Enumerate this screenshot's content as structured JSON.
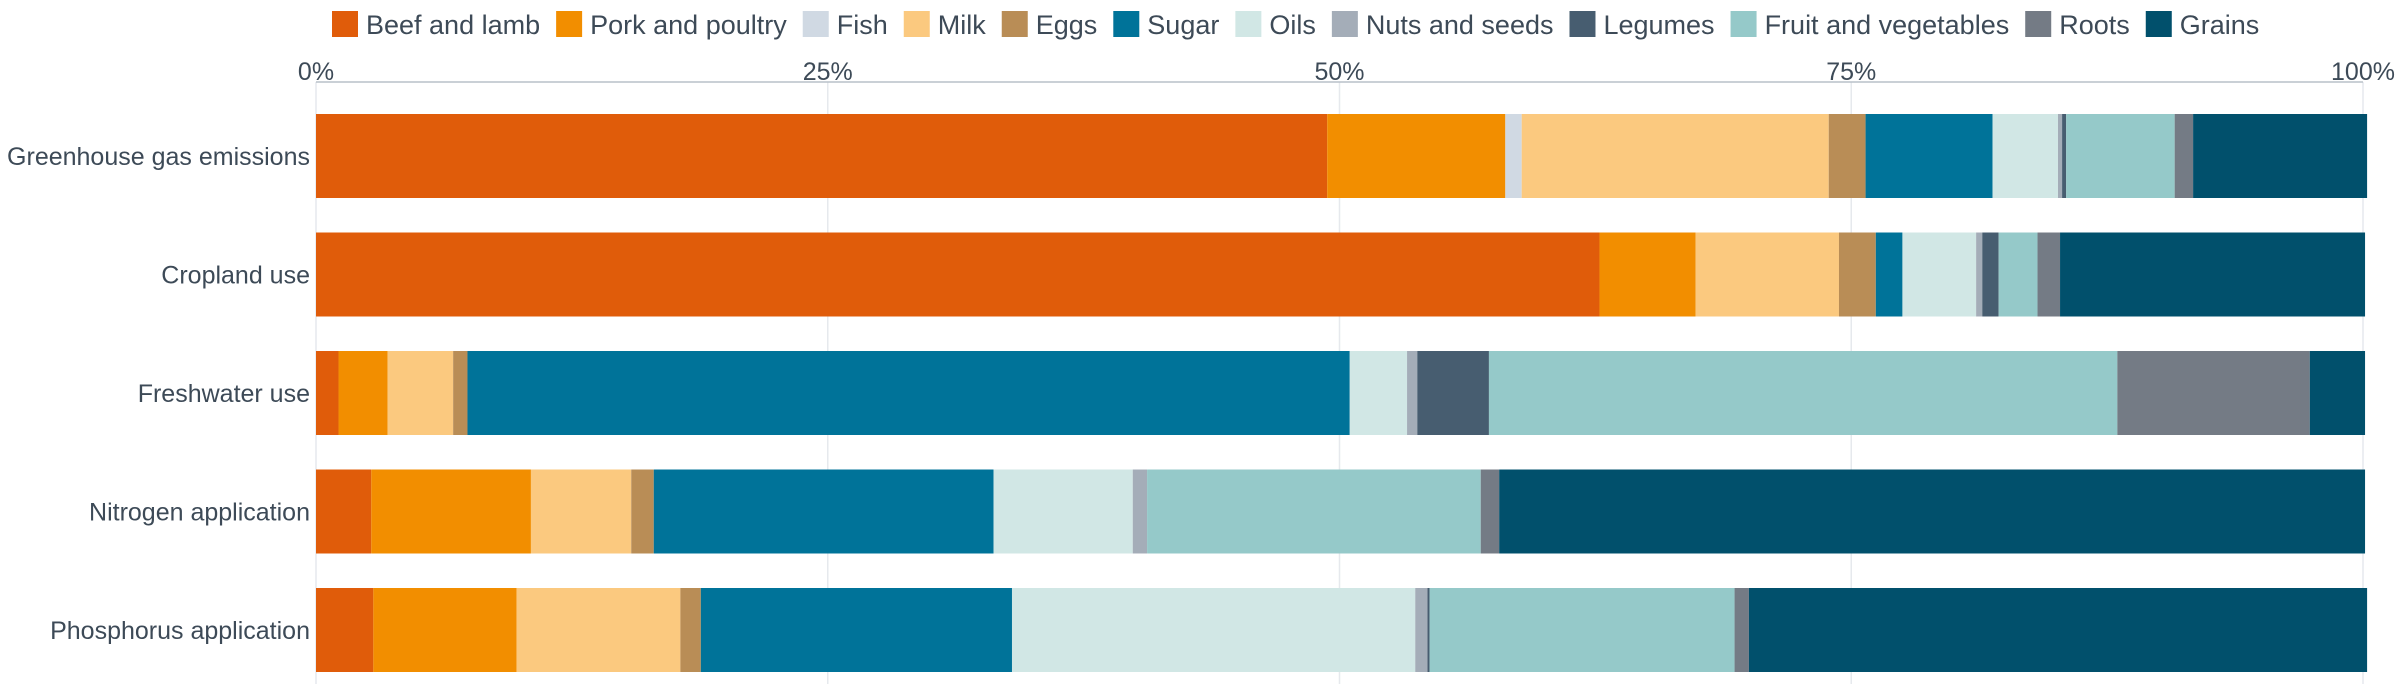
{
  "chart_data": {
    "type": "bar",
    "orientation": "horizontal",
    "stacked": true,
    "xlim": [
      0,
      100
    ],
    "x_ticks": [
      "0%",
      "25%",
      "50%",
      "75%",
      "100%"
    ],
    "x_tick_values": [
      0,
      25,
      50,
      75,
      100
    ],
    "grid": true,
    "legend_position": "top",
    "categories": [
      "Greenhouse gas emissions",
      "Cropland use",
      "Freshwater use",
      "Nitrogen application",
      "Phosphorus application"
    ],
    "series": [
      {
        "name": "Beef and lamb",
        "color": "#e05c0a",
        "values": [
          49.4,
          62.7,
          1.1,
          2.7,
          2.8
        ]
      },
      {
        "name": "Pork and poultry",
        "color": "#f28e00",
        "values": [
          8.7,
          4.7,
          2.4,
          7.8,
          7.0
        ]
      },
      {
        "name": "Fish",
        "color": "#d0d9e3",
        "values": [
          0.8,
          0.0,
          0.0,
          0.0,
          0.0
        ]
      },
      {
        "name": "Milk",
        "color": "#fbc97f",
        "values": [
          15.0,
          7.0,
          3.2,
          4.9,
          8.0
        ]
      },
      {
        "name": "Eggs",
        "color": "#b98d56",
        "values": [
          1.8,
          1.8,
          0.7,
          1.1,
          1.0
        ]
      },
      {
        "name": "Sugar",
        "color": "#007399",
        "values": [
          6.2,
          1.3,
          43.1,
          16.6,
          15.2
        ]
      },
      {
        "name": "Oils",
        "color": "#d1e7e5",
        "values": [
          3.2,
          3.6,
          2.8,
          6.8,
          19.7
        ]
      },
      {
        "name": "Nuts and seeds",
        "color": "#a4adb8",
        "values": [
          0.2,
          0.3,
          0.5,
          0.7,
          0.6
        ]
      },
      {
        "name": "Legumes",
        "color": "#475d70",
        "values": [
          0.2,
          0.8,
          3.5,
          0.0,
          0.1
        ]
      },
      {
        "name": "Fruit and vegetables",
        "color": "#95c9c9",
        "values": [
          5.3,
          1.9,
          30.7,
          16.3,
          14.9
        ]
      },
      {
        "name": "Roots",
        "color": "#747b85",
        "values": [
          0.9,
          1.1,
          9.4,
          0.9,
          0.7
        ]
      },
      {
        "name": "Grains",
        "color": "#01506c",
        "values": [
          8.5,
          14.9,
          2.7,
          42.3,
          30.2
        ]
      }
    ]
  }
}
